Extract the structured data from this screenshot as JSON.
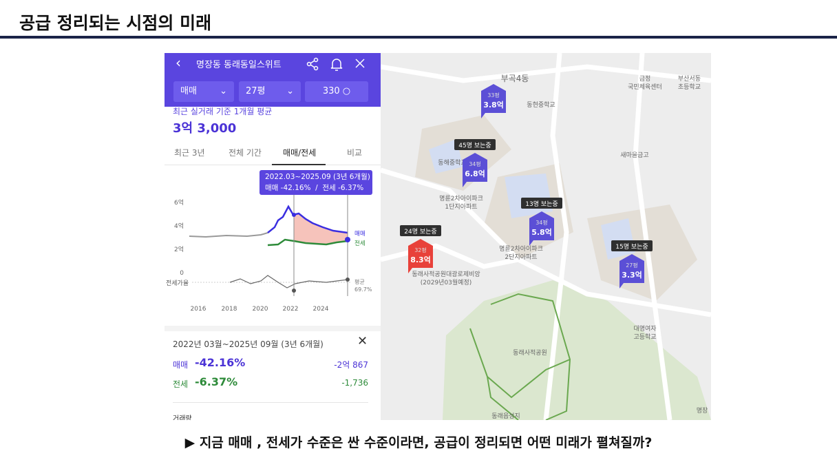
{
  "header": {
    "title": "공급 정리되는 시점의 미래"
  },
  "app": {
    "title": "명장동 동래동일스위트",
    "filters": [
      "매매",
      "27평",
      "330"
    ],
    "subtitle": "최근 실거래 기준 1개월 평균",
    "price": "3억 3,000",
    "tabs": [
      "최근 3년",
      "전체 기간",
      "매매/전세",
      "비교"
    ],
    "tooltip": {
      "period": "2022.03~2025.09 (3년 6개월)",
      "change": "매매 -42.16%  /  전세 -6.37%"
    },
    "chart": {
      "yticks": [
        "6억",
        "4억",
        "2억",
        "0"
      ],
      "xticks": [
        "2016",
        "2018",
        "2020",
        "2022",
        "2024"
      ],
      "ratio_label": "전세가율",
      "series": [
        "매매",
        "전세"
      ],
      "average_label": "평균",
      "average": "69.7%"
    },
    "summary": {
      "period": "2022년 03월~2025년 09월 (3년 6개월)",
      "rows": [
        {
          "type": "매매",
          "percent": "-42.16%",
          "amount": "-2억 867"
        },
        {
          "type": "전세",
          "percent": "-6.37%",
          "amount": "-1,736"
        }
      ],
      "volume_label": "거래량"
    }
  },
  "map": {
    "listings": [
      {
        "area": "33평",
        "price": "3.8억",
        "color": "#5b4fd6"
      },
      {
        "area": "34평",
        "price": "6.8억",
        "color": "#5b4fd6",
        "viewers": "45명 보는중"
      },
      {
        "area": "34평",
        "price": "5.8억",
        "color": "#5b4fd6",
        "viewers": "13명 보는중"
      },
      {
        "area": "32평",
        "price": "8.3억",
        "color": "#e8413a",
        "viewers": "24명 보는중"
      },
      {
        "area": "27평",
        "price": "3.3억",
        "color": "#5b4fd6",
        "viewers": "15명 보는중"
      }
    ],
    "places": [
      "부곡4동",
      "동현중학교",
      "동해중학교",
      "새마을금고",
      "명륜2차아이파크",
      "1단지아파트",
      "명륜2차아이파크",
      "2단지아파트",
      "동래사적공원대광로제비앙",
      "(2029년03월예정)",
      "동래사적공원",
      "대명여자",
      "고등학교",
      "금정",
      "국민체육센터",
      "부산서동",
      "초등학교",
      "동래읍성지",
      "명장"
    ]
  },
  "caption": "▶ 지금 매매 , 전세가 수준은 싼 수준이라면, 공급이 정리되면 어떤 미래가 펼쳐질까?"
}
